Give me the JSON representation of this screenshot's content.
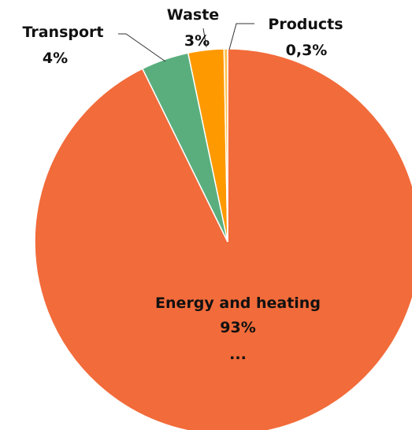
{
  "chart_data": {
    "type": "pie",
    "title": "",
    "slices": [
      {
        "name": "Energy and heating",
        "value": 93,
        "value_label": "93%",
        "extra": "...",
        "color": "#F26B3A"
      },
      {
        "name": "Transport",
        "value": 4,
        "value_label": "4%",
        "color": "#5AAE7E"
      },
      {
        "name": "Waste",
        "value": 3,
        "value_label": "3%",
        "color": "#FF9900"
      },
      {
        "name": "Products",
        "value": 0.3,
        "value_label": "0,3%",
        "color": "#FFC04D"
      }
    ],
    "start_angle": "12 o'clock",
    "direction": "clockwise, largest slice last",
    "legend": "none",
    "labels": "category name and percentage beside each slice; the three small slices use leader lines"
  }
}
